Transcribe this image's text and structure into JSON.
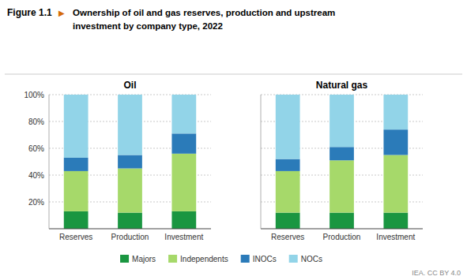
{
  "chart_data": [
    {
      "type": "bar",
      "title": "Oil",
      "stacked": true,
      "grid": true,
      "legend": "bottom",
      "annotations": [
        "Figure 1.1",
        "▶",
        "Ownership of oil and gas reserves, production and upstream\ninvestment by company type, 2022",
        "IEA. CC BY 4.0"
      ],
      "categories": [
        "Reserves",
        "Production",
        "Investment"
      ],
      "series": [
        {
          "name": "Majors",
          "color": "#1a9641",
          "values": [
            13,
            12,
            13
          ]
        },
        {
          "name": "Independents",
          "color": "#a6d96a",
          "values": [
            30,
            33,
            43
          ]
        },
        {
          "name": "INOCs",
          "color": "#2b7bb9",
          "values": [
            10,
            10,
            15
          ]
        },
        {
          "name": "NOCs",
          "color": "#92d4e8",
          "values": [
            47,
            45,
            29
          ]
        }
      ],
      "ylim": [
        0,
        100
      ],
      "yticks": [
        {
          "value": 20,
          "label": "20%"
        },
        {
          "value": 40,
          "label": "40%"
        },
        {
          "value": 60,
          "label": "60%"
        },
        {
          "value": 80,
          "label": "80%"
        },
        {
          "value": 100,
          "label": "100%"
        }
      ]
    },
    {
      "type": "bar",
      "title": "Natural gas",
      "stacked": true,
      "grid": true,
      "tick_labels": "x",
      "categories": [
        "Reserves",
        "Production",
        "Investment"
      ],
      "series": [
        {
          "name": "Majors",
          "color": "#1a9641",
          "values": [
            12,
            12,
            12
          ]
        },
        {
          "name": "Independents",
          "color": "#a6d96a",
          "values": [
            31,
            39,
            43
          ]
        },
        {
          "name": "INOCs",
          "color": "#2b7bb9",
          "values": [
            9,
            10,
            19
          ]
        },
        {
          "name": "NOCs",
          "color": "#92d4e8",
          "values": [
            48,
            39,
            26
          ]
        }
      ],
      "ylim": [
        0,
        100
      ],
      "yticks": [
        20,
        40,
        60,
        80,
        100
      ]
    }
  ]
}
